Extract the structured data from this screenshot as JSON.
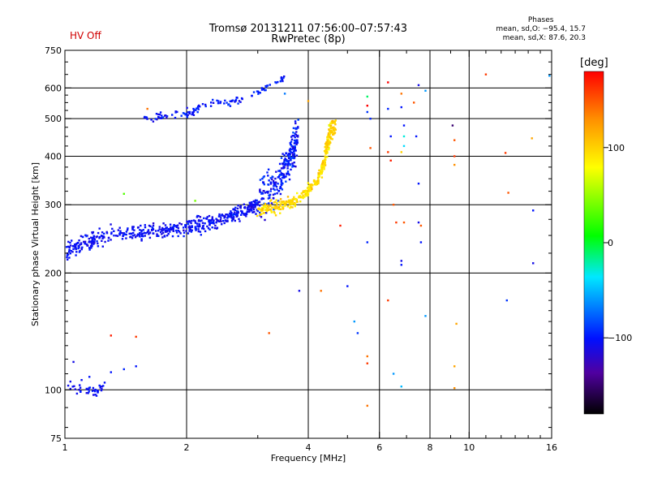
{
  "header": {
    "title_line1": "Tromsø 20131211 07:56:00–07:57:43",
    "title_line2": "RwPretec (8p)",
    "hv_status": "HV Off"
  },
  "phase_stats": {
    "heading": "Phases",
    "line_o": "mean, sd,O: −95.4, 15.7",
    "line_x": "mean, sd,X:  87.6, 20.3"
  },
  "colorbar": {
    "title": "[deg]",
    "ticks": [
      {
        "value": 100,
        "label": "100"
      },
      {
        "value": 0,
        "label": "0"
      },
      {
        "value": -100,
        "label": "−100"
      }
    ],
    "min": -180,
    "max": 180
  },
  "chart_data": {
    "type": "scatter",
    "xlabel": "Frequency [MHz]",
    "ylabel": "Stationary phase Virtual Height [km]",
    "xscale": "log",
    "yscale": "log",
    "xlim": [
      1,
      16
    ],
    "ylim": [
      75,
      750
    ],
    "grid": true,
    "x_ticks": [
      {
        "value": 1,
        "label": "1"
      },
      {
        "value": 2,
        "label": "2"
      },
      {
        "value": 4,
        "label": "4"
      },
      {
        "value": 6,
        "label": "6"
      },
      {
        "value": 8,
        "label": "8"
      },
      {
        "value": 10,
        "label": "10"
      },
      {
        "value": 16,
        "label": "16"
      }
    ],
    "x_gridlines": [
      2,
      4,
      6,
      8,
      10
    ],
    "y_ticks": [
      {
        "value": 75,
        "label": "75"
      },
      {
        "value": 100,
        "label": "100"
      },
      {
        "value": 200,
        "label": "200"
      },
      {
        "value": 300,
        "label": "300"
      },
      {
        "value": 400,
        "label": "400"
      },
      {
        "value": 500,
        "label": "500"
      },
      {
        "value": 600,
        "label": "600"
      },
      {
        "value": 750,
        "label": "750"
      }
    ],
    "y_gridlines": [
      100,
      200,
      300,
      400,
      500,
      600
    ],
    "traces": [
      {
        "points": [
          [
            1.01,
            226
          ],
          [
            1.05,
            232
          ],
          [
            1.1,
            238
          ],
          [
            1.15,
            242
          ],
          [
            1.2,
            246
          ],
          [
            1.3,
            250
          ],
          [
            1.4,
            252
          ],
          [
            1.5,
            254
          ],
          [
            1.6,
            255
          ],
          [
            1.7,
            256
          ],
          [
            1.8,
            258
          ],
          [
            1.9,
            260
          ],
          [
            2.0,
            262
          ],
          [
            2.1,
            264
          ],
          [
            2.2,
            267
          ],
          [
            2.3,
            270
          ],
          [
            2.4,
            273
          ],
          [
            2.5,
            277
          ],
          [
            2.6,
            281
          ],
          [
            2.7,
            286
          ],
          [
            2.8,
            291
          ],
          [
            2.9,
            296
          ],
          [
            3.0,
            301
          ]
        ],
        "jitter": 12,
        "phase": -105,
        "phase_sd": 10,
        "n": 520
      },
      {
        "points": [
          [
            1.55,
            500
          ],
          [
            1.7,
            505
          ],
          [
            1.85,
            510
          ],
          [
            2.0,
            515
          ],
          [
            2.1,
            525
          ],
          [
            2.2,
            540
          ],
          [
            2.4,
            548
          ],
          [
            2.6,
            553
          ],
          [
            2.75,
            560
          ]
        ],
        "jitter": 12,
        "phase": -100,
        "phase_sd": 12,
        "n": 90
      },
      {
        "points": [
          [
            2.9,
            575
          ],
          [
            3.1,
            595
          ],
          [
            3.3,
            615
          ],
          [
            3.5,
            640
          ]
        ],
        "jitter": 10,
        "phase": -95,
        "phase_sd": 12,
        "n": 30
      },
      {
        "points": [
          [
            3.0,
            310
          ],
          [
            3.2,
            325
          ],
          [
            3.4,
            345
          ],
          [
            3.5,
            370
          ],
          [
            3.6,
            390
          ],
          [
            3.7,
            420
          ],
          [
            3.75,
            460
          ]
        ],
        "jitter": 40,
        "phase": -100,
        "phase_sd": 15,
        "n": 260
      },
      {
        "points": [
          [
            3.0,
            290
          ],
          [
            3.2,
            293
          ],
          [
            3.4,
            297
          ],
          [
            3.6,
            303
          ],
          [
            3.8,
            312
          ],
          [
            4.0,
            325
          ],
          [
            4.2,
            345
          ],
          [
            4.35,
            375
          ],
          [
            4.45,
            410
          ],
          [
            4.5,
            450
          ],
          [
            4.55,
            490
          ]
        ],
        "jitter": 10,
        "phase": 95,
        "phase_sd": 15,
        "n": 320
      },
      {
        "points": [
          [
            4.4,
            420
          ],
          [
            4.5,
            440
          ],
          [
            4.6,
            460
          ],
          [
            4.65,
            480
          ]
        ],
        "jitter": 20,
        "phase": 100,
        "phase_sd": 10,
        "n": 60
      },
      {
        "points": [
          [
            1.02,
            103
          ],
          [
            1.08,
            100
          ],
          [
            1.14,
            99
          ],
          [
            1.2,
            100
          ],
          [
            1.25,
            101
          ]
        ],
        "jitter": 3,
        "phase": -105,
        "phase_sd": 8,
        "n": 40
      }
    ],
    "scatter_points": [
      [
        1.1,
        106,
        -105
      ],
      [
        1.15,
        108,
        -100
      ],
      [
        1.3,
        111,
        -100
      ],
      [
        1.4,
        113,
        -95
      ],
      [
        1.5,
        115,
        -100
      ],
      [
        1.05,
        118,
        -110
      ],
      [
        1.3,
        138,
        170
      ],
      [
        1.5,
        137,
        160
      ],
      [
        1.4,
        320,
        30
      ],
      [
        2.1,
        307,
        40
      ],
      [
        1.6,
        530,
        140
      ],
      [
        3.5,
        580,
        -70
      ],
      [
        3.2,
        140,
        150
      ],
      [
        3.8,
        180,
        -110
      ],
      [
        4.0,
        555,
        120
      ],
      [
        4.3,
        180,
        140
      ],
      [
        4.8,
        265,
        170
      ],
      [
        5.0,
        185,
        -100
      ],
      [
        5.2,
        150,
        -60
      ],
      [
        5.3,
        140,
        -90
      ],
      [
        5.6,
        570,
        -10
      ],
      [
        5.6,
        540,
        180
      ],
      [
        5.6,
        520,
        -90
      ],
      [
        5.7,
        500,
        -95
      ],
      [
        5.7,
        420,
        150
      ],
      [
        5.6,
        240,
        -95
      ],
      [
        5.6,
        122,
        140
      ],
      [
        5.6,
        117,
        160
      ],
      [
        5.6,
        91,
        140
      ],
      [
        6.3,
        620,
        200
      ],
      [
        6.3,
        530,
        -95
      ],
      [
        6.4,
        450,
        -100
      ],
      [
        6.3,
        410,
        160
      ],
      [
        6.4,
        390,
        170
      ],
      [
        6.5,
        300,
        150
      ],
      [
        6.6,
        270,
        160
      ],
      [
        6.3,
        170,
        160
      ],
      [
        6.5,
        110,
        -60
      ],
      [
        6.8,
        580,
        140
      ],
      [
        6.8,
        535,
        -100
      ],
      [
        6.9,
        480,
        -100
      ],
      [
        6.9,
        450,
        -30
      ],
      [
        6.9,
        425,
        -40
      ],
      [
        6.8,
        410,
        100
      ],
      [
        6.9,
        270,
        150
      ],
      [
        6.8,
        215,
        -110
      ],
      [
        6.8,
        210,
        -100
      ],
      [
        6.8,
        102,
        -50
      ],
      [
        7.3,
        550,
        150
      ],
      [
        7.4,
        450,
        -100
      ],
      [
        7.5,
        340,
        -100
      ],
      [
        7.5,
        270,
        -110
      ],
      [
        7.6,
        265,
        150
      ],
      [
        7.6,
        240,
        -100
      ],
      [
        7.5,
        610,
        -110
      ],
      [
        7.8,
        590,
        -60
      ],
      [
        7.8,
        155,
        -60
      ],
      [
        9.1,
        480,
        -150
      ],
      [
        9.2,
        440,
        150
      ],
      [
        9.2,
        400,
        160
      ],
      [
        9.2,
        380,
        130
      ],
      [
        9.2,
        115,
        120
      ],
      [
        9.3,
        148,
        120
      ],
      [
        9.2,
        101,
        130
      ],
      [
        11.0,
        650,
        160
      ],
      [
        12.3,
        408,
        160
      ],
      [
        12.5,
        322,
        150
      ],
      [
        12.4,
        170,
        -90
      ],
      [
        14.3,
        445,
        120
      ],
      [
        14.4,
        290,
        -100
      ],
      [
        14.4,
        212,
        -110
      ],
      [
        15.8,
        645,
        -60
      ]
    ]
  }
}
